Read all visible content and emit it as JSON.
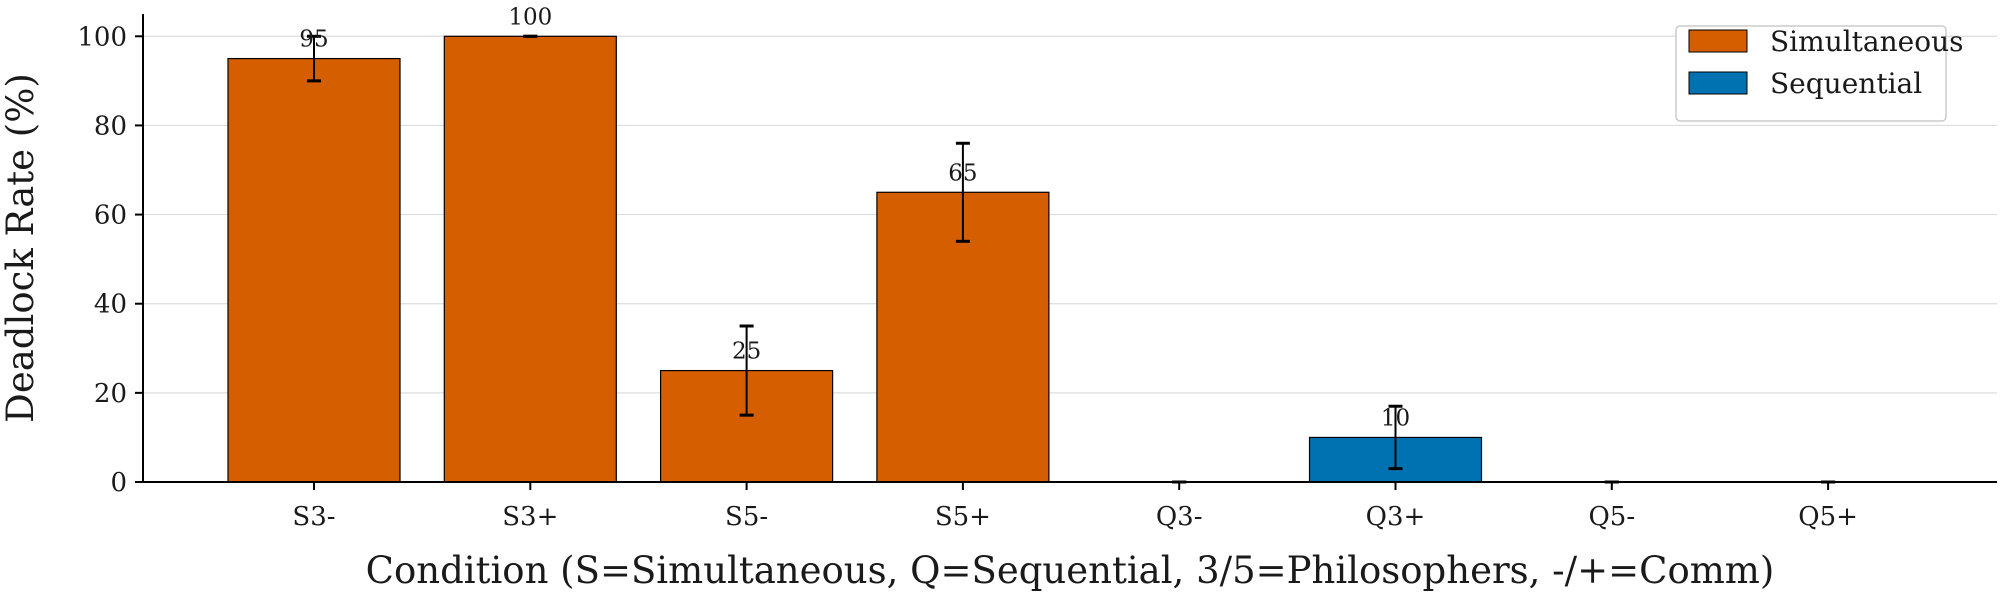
{
  "colors": {
    "simultaneous": "#d55e00",
    "sequential": "#0072b2",
    "grid": "#dddddd",
    "axis": "#000000",
    "errorbar": "#000000"
  },
  "chart_data": {
    "type": "bar",
    "title": "",
    "xlabel": "Condition (S=Simultaneous, Q=Sequential, 3/5=Philosophers, -/+=Comm)",
    "ylabel": "Deadlock Rate (%)",
    "ylim": [
      0,
      105
    ],
    "yticks": [
      0,
      20,
      40,
      60,
      80,
      100
    ],
    "grid": true,
    "legend_position": "top-right",
    "categories": [
      "S3-",
      "S3+",
      "S5-",
      "S5+",
      "Q3-",
      "Q3+",
      "Q5-",
      "Q5+"
    ],
    "values": [
      95,
      100,
      25,
      65,
      0,
      10,
      0,
      0
    ],
    "errors": [
      5,
      0,
      10,
      11,
      0,
      7,
      0,
      0
    ],
    "series_of_bar": [
      "Simultaneous",
      "Simultaneous",
      "Simultaneous",
      "Simultaneous",
      "Sequential",
      "Sequential",
      "Sequential",
      "Sequential"
    ],
    "data_labels": [
      "95",
      "100",
      "25",
      "65",
      "",
      "10",
      "",
      ""
    ],
    "legend": [
      "Simultaneous",
      "Sequential"
    ]
  }
}
